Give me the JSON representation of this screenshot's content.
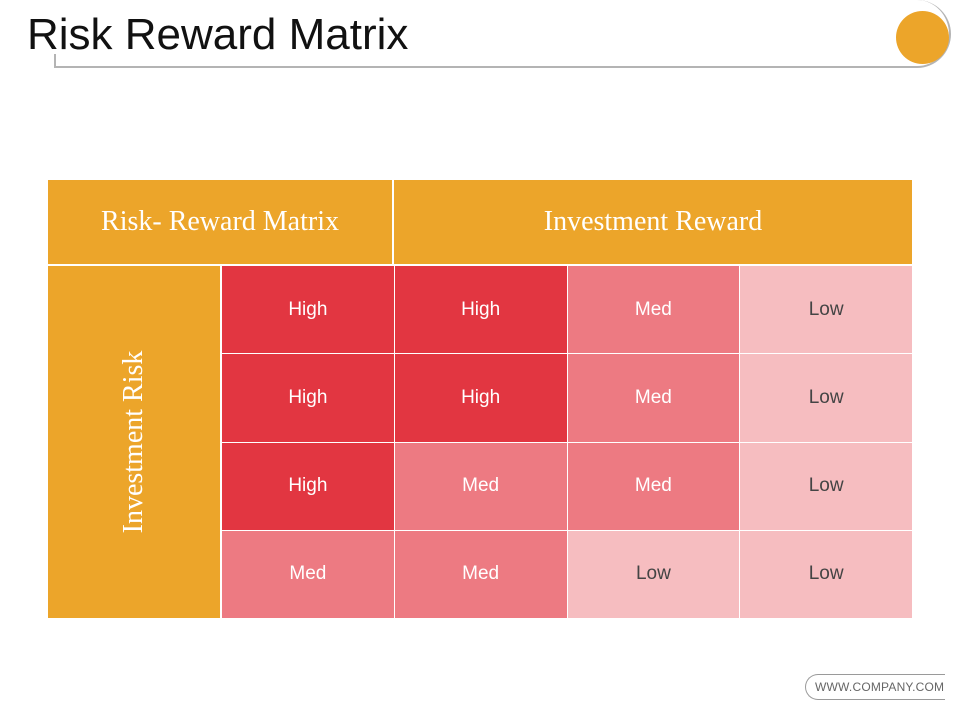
{
  "slide": {
    "title": "Risk Reward Matrix",
    "accent_color": "#eca52a"
  },
  "matrix": {
    "corner_label": "Risk- Reward Matrix",
    "column_header": "Investment Reward",
    "row_header": "Investment Risk",
    "level_colors": {
      "High": "#e23641",
      "Med": "#ed7a82",
      "Low": "#f6bdc0"
    },
    "rows": [
      [
        "High",
        "High",
        "Med",
        "Low"
      ],
      [
        "High",
        "High",
        "Med",
        "Low"
      ],
      [
        "High",
        "Med",
        "Med",
        "Low"
      ],
      [
        "Med",
        "Med",
        "Low",
        "Low"
      ]
    ]
  },
  "footer": {
    "website": "WWW.COMPANY.COM"
  }
}
